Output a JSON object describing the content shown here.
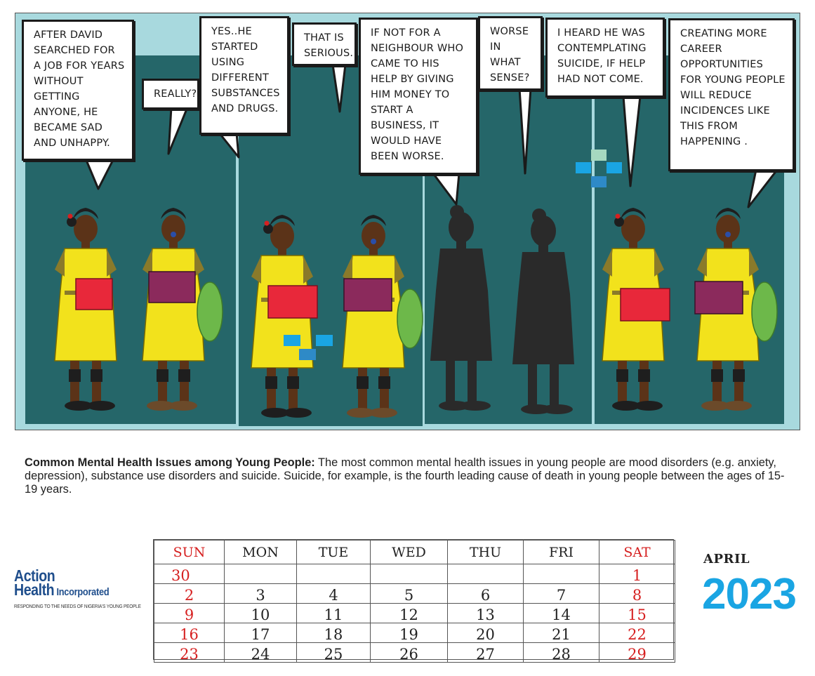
{
  "comic": {
    "bubbles": [
      "AFTER DAVID\nSEARCHED FOR\nA JOB FOR YEARS\nWITHOUT\nGETTING\nANYONE, HE\nBECAME SAD\nAND UNHAPPY.",
      "REALLY?",
      "YES..HE\nSTARTED\nUSING\nDIFFERENT\nSUBSTANCES\nAND DRUGS.",
      "THAT IS\nSERIOUS.",
      "IF NOT FOR A\nNEIGHBOUR WHO\nCAME TO HIS\nHELP BY GIVING\nHIM MONEY TO\nSTART A\nBUSINESS, IT\nWOULD HAVE\nBEEN WORSE.",
      "WORSE\nIN\nWHAT\nSENSE?",
      "I HEARD HE WAS\nCONTEMPLATING\nSUICIDE, IF HELP\nHAD NOT COME.",
      "CREATING MORE\nCAREER\nOPPORTUNITIES\nFOR YOUNG PEOPLE\nWILL REDUCE\nINCIDENCES LIKE\nTHIS FROM\nHAPPENING ."
    ],
    "colors": {
      "sky": "#a8d9de",
      "band": "#256669",
      "uniform": "#f2e21c",
      "folder_red": "#e8283a",
      "folder_purple": "#8b2a5c",
      "bag_green": "#6db84a",
      "silhouette": "#2a2a2a",
      "accent_blue": "#1aa5e3"
    }
  },
  "caption": {
    "heading": "Common Mental Health Issues among Young People:",
    "body": " The most common mental health issues in young people are mood disorders (e.g. anxiety, depression), substance use disorders and suicide. Suicide, for example, is the fourth leading cause of death in young people between the ages of 15-19 years."
  },
  "logo": {
    "line1": "Action",
    "line2": "Health",
    "line2_suffix": " Incorporated",
    "tagline": "RESPONDING TO THE NEEDS OF NIGERIA'S YOUNG PEOPLE",
    "color": "#1f4e8c"
  },
  "calendar": {
    "month": "APRIL",
    "year": "2023",
    "days": [
      "SUN",
      "MON",
      "TUE",
      "WED",
      "THU",
      "FRI",
      "SAT"
    ],
    "weeks": [
      [
        "30",
        "",
        "",
        "",
        "",
        "",
        "1"
      ],
      [
        "2",
        "3",
        "4",
        "5",
        "6",
        "7",
        "8"
      ],
      [
        "9",
        "10",
        "11",
        "12",
        "13",
        "14",
        "15"
      ],
      [
        "16",
        "17",
        "18",
        "19",
        "20",
        "21",
        "22"
      ],
      [
        "23",
        "24",
        "25",
        "26",
        "27",
        "28",
        "29"
      ]
    ],
    "weekend_color": "#d62020",
    "year_color": "#1aa5e3"
  }
}
